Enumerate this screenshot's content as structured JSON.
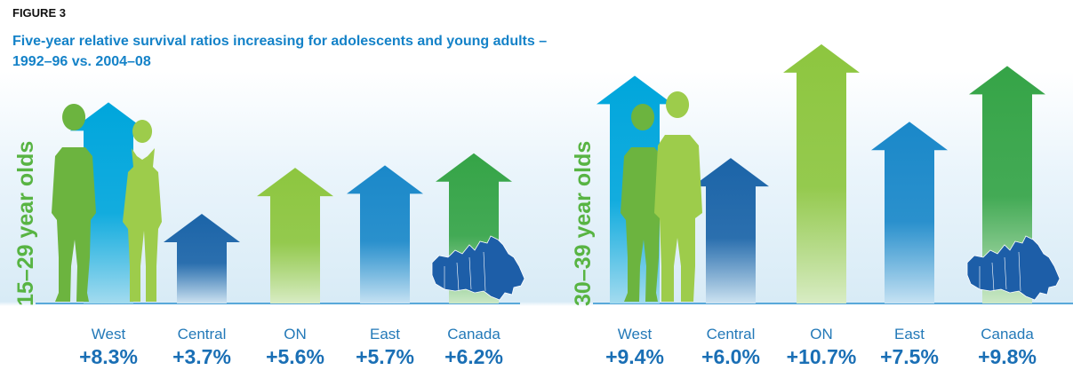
{
  "figure_label": "FIGURE 3",
  "title": "Five-year relative survival ratios increasing for adolescents and young adults – 1992–96 vs. 2004–08",
  "colors": {
    "West": [
      "#00a6dc",
      "#a3dbef"
    ],
    "Central": [
      "#1b64a8",
      "#cde3f1"
    ],
    "ON": [
      "#8dc63f",
      "#d8ecc4"
    ],
    "East": [
      "#1a88c9",
      "#c6e2f3"
    ],
    "Canada": [
      "#35a447",
      "#cbe8c6"
    ],
    "silhouette_dark": "#6cb43f",
    "silhouette_light": "#9dcc4b",
    "map": "#1d5ea8"
  },
  "icons": [
    "person-silhouette-male",
    "person-silhouette-female",
    "canada-map-icon"
  ],
  "chart_data": [
    {
      "type": "bar",
      "panel_label": "15–29 year olds",
      "unit": "percentage-point increase",
      "categories": [
        "West",
        "Central",
        "ON",
        "East",
        "Canada"
      ],
      "values": [
        8.3,
        3.7,
        5.6,
        5.7,
        6.2
      ],
      "value_labels": [
        "+8.3%",
        "+3.7%",
        "+5.6%",
        "+5.7%",
        "+6.2%"
      ],
      "ylim": [
        0,
        11.5
      ],
      "grid": false,
      "legend": "none"
    },
    {
      "type": "bar",
      "panel_label": "30–39 year olds",
      "unit": "percentage-point increase",
      "categories": [
        "West",
        "Central",
        "ON",
        "East",
        "Canada"
      ],
      "values": [
        9.4,
        6.0,
        10.7,
        7.5,
        9.8
      ],
      "value_labels": [
        "+9.4%",
        "+6.0%",
        "+10.7%",
        "+7.5%",
        "+9.8%"
      ],
      "ylim": [
        0,
        11.5
      ],
      "grid": false,
      "legend": "none"
    }
  ]
}
